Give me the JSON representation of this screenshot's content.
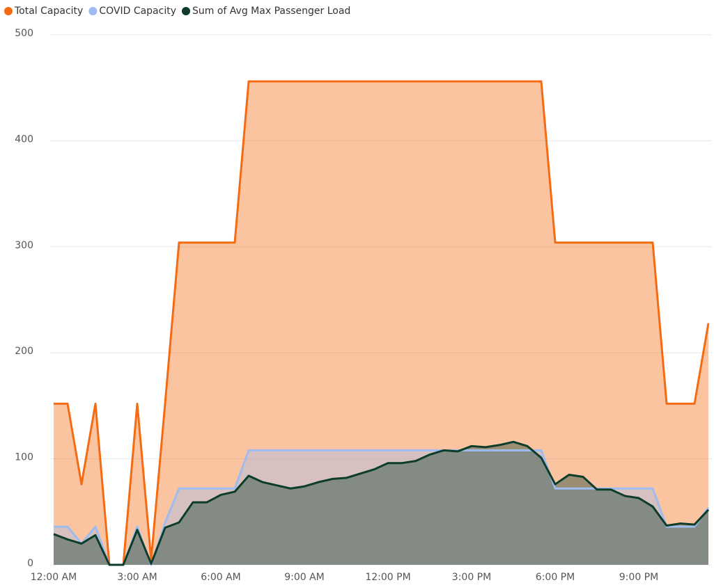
{
  "chart_data": {
    "type": "area",
    "categories": [
      "12:00 AM",
      null,
      null,
      null,
      null,
      null,
      "3:00 AM",
      null,
      null,
      null,
      null,
      null,
      "6:00 AM",
      null,
      null,
      null,
      null,
      null,
      "9:00 AM",
      null,
      null,
      null,
      null,
      null,
      "12:00 PM",
      null,
      null,
      null,
      null,
      null,
      "3:00 PM",
      null,
      null,
      null,
      null,
      null,
      "6:00 PM",
      null,
      null,
      null,
      null,
      null,
      "9:00 PM",
      null,
      null,
      null,
      null,
      null
    ],
    "series": [
      {
        "name": "Total Capacity",
        "color": "#f46b13",
        "values": [
          152,
          152,
          76,
          152,
          0,
          0,
          152,
          5,
          152,
          304,
          304,
          304,
          304,
          304,
          456,
          456,
          456,
          456,
          456,
          456,
          456,
          456,
          456,
          456,
          456,
          456,
          456,
          456,
          456,
          456,
          456,
          456,
          456,
          456,
          456,
          456,
          304,
          304,
          304,
          304,
          304,
          304,
          304,
          304,
          152,
          152,
          152,
          228
        ]
      },
      {
        "name": "COVID Capacity",
        "color": "#9fbcf0",
        "values": [
          36,
          36,
          20,
          36,
          0,
          0,
          36,
          0,
          40,
          72,
          72,
          72,
          72,
          72,
          108,
          108,
          108,
          108,
          108,
          108,
          108,
          108,
          108,
          108,
          108,
          108,
          108,
          108,
          108,
          108,
          108,
          108,
          108,
          108,
          108,
          108,
          72,
          72,
          72,
          72,
          72,
          72,
          72,
          72,
          36,
          36,
          36,
          54
        ]
      },
      {
        "name": "Sum of Avg Max Passenger Load",
        "color": "#0b3d2a",
        "values": [
          29,
          24,
          20,
          28,
          0,
          0,
          33,
          1,
          35,
          40,
          59,
          59,
          66,
          69,
          84,
          78,
          75,
          72,
          74,
          78,
          81,
          82,
          86,
          90,
          96,
          96,
          98,
          104,
          108,
          107,
          112,
          111,
          113,
          116,
          112,
          101,
          76,
          85,
          83,
          71,
          71,
          65,
          63,
          55,
          37,
          39,
          38,
          52
        ]
      }
    ],
    "ylim": [
      0,
      500
    ],
    "yticks": [
      0,
      100,
      200,
      300,
      400,
      500
    ],
    "grid": true,
    "legend": "top-left"
  }
}
